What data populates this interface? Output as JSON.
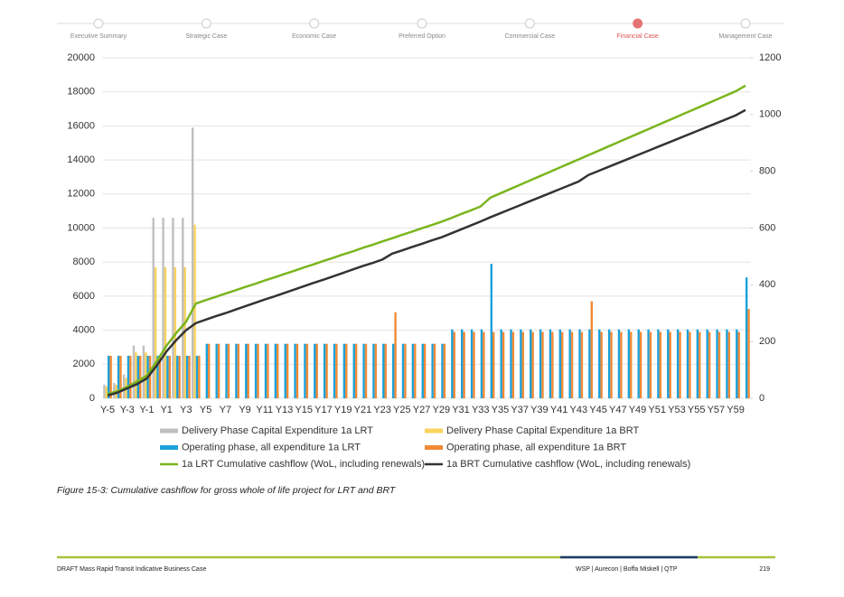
{
  "nav": {
    "steps": [
      "Executive Summary",
      "Strategic Case",
      "Economic Case",
      "Preferred Option",
      "Commercial Case",
      "Financial Case",
      "Management Case"
    ]
  },
  "chart_data": {
    "type": "bar",
    "categories": [
      "Y-5",
      null,
      "Y-3",
      null,
      "Y-1",
      null,
      "Y1",
      null,
      "Y3",
      null,
      "Y5",
      null,
      "Y7",
      null,
      "Y9",
      null,
      "Y11",
      null,
      "Y13",
      null,
      "Y15",
      null,
      "Y17",
      null,
      "Y19",
      null,
      "Y21",
      null,
      "Y23",
      null,
      "Y25",
      null,
      "Y27",
      null,
      "Y29",
      null,
      "Y31",
      null,
      "Y33",
      null,
      "Y35",
      null,
      "Y37",
      null,
      "Y39",
      null,
      "Y41",
      null,
      "Y43",
      null,
      "Y45",
      null,
      "Y47",
      null,
      "Y49",
      null,
      "Y51",
      null,
      "Y53",
      null,
      "Y55",
      null,
      "Y57",
      null,
      "Y59",
      null
    ],
    "ylim": [
      0,
      20000
    ],
    "yticks": [
      0,
      2000,
      4000,
      6000,
      8000,
      10000,
      12000,
      14000,
      16000,
      18000,
      20000
    ],
    "y2lim": [
      0,
      1200
    ],
    "y2ticks": [
      0,
      200,
      400,
      600,
      800,
      1000,
      1200
    ],
    "grid": true,
    "series": [
      {
        "name": "Delivery Phase Capital Expenditure 1a LRT",
        "type": "bar",
        "color": "#bfbfbf",
        "values": [
          800,
          900,
          1400,
          3100,
          3100,
          10600,
          10600,
          10600,
          10600,
          15900,
          null,
          null,
          null,
          null,
          null,
          null,
          null,
          null,
          null,
          null,
          null,
          null,
          null,
          null,
          null,
          null,
          null,
          null,
          null,
          null,
          null,
          null,
          null,
          null,
          null,
          null,
          null,
          null,
          null,
          null,
          null,
          null,
          null,
          null,
          null,
          null,
          null,
          null,
          null,
          null,
          null,
          null,
          null,
          null,
          null,
          null,
          null,
          null,
          null,
          null,
          null,
          null,
          null,
          null,
          null,
          null
        ]
      },
      {
        "name": "Delivery Phase Capital Expenditure 1a BRT",
        "type": "bar",
        "color": "#fad35e",
        "values": [
          700,
          800,
          1200,
          2700,
          2700,
          7700,
          7700,
          7700,
          7700,
          10200,
          null,
          null,
          null,
          null,
          null,
          null,
          null,
          null,
          null,
          null,
          null,
          null,
          null,
          null,
          null,
          null,
          null,
          null,
          null,
          null,
          null,
          null,
          null,
          null,
          null,
          null,
          null,
          null,
          null,
          null,
          null,
          null,
          null,
          null,
          null,
          null,
          null,
          null,
          null,
          null,
          null,
          null,
          null,
          null,
          null,
          null,
          null,
          null,
          null,
          null,
          null,
          null,
          null,
          null,
          null,
          null
        ]
      },
      {
        "name": "Operating phase, all expenditure 1a LRT",
        "type": "bar",
        "color": "#1ba1db",
        "values": [
          2500,
          2500,
          2500,
          2500,
          2500,
          2500,
          2500,
          2500,
          2500,
          2500,
          3200,
          3200,
          3200,
          3200,
          3200,
          3200,
          3200,
          3200,
          3200,
          3200,
          3200,
          3200,
          3200,
          3200,
          3200,
          3200,
          3200,
          3200,
          3200,
          3200,
          3200,
          3200,
          3200,
          3200,
          3200,
          4050,
          4050,
          4050,
          4050,
          7900,
          4050,
          4050,
          4050,
          4050,
          4050,
          4050,
          4050,
          4050,
          4050,
          4050,
          4050,
          4050,
          4050,
          4050,
          4050,
          4050,
          4050,
          4050,
          4050,
          4050,
          4050,
          4050,
          4050,
          4050,
          4050,
          7100
        ]
      },
      {
        "name": "Operating phase, all expenditure 1a BRT",
        "type": "bar",
        "color": "#f08a35",
        "values": [
          2500,
          2500,
          2500,
          2500,
          2500,
          2500,
          2500,
          2500,
          2500,
          2500,
          3200,
          3200,
          3200,
          3200,
          3200,
          3200,
          3200,
          3200,
          3200,
          3200,
          3200,
          3200,
          3200,
          3200,
          3200,
          3200,
          3200,
          3200,
          3200,
          5050,
          3200,
          3200,
          3200,
          3200,
          3200,
          3900,
          3900,
          3900,
          3900,
          3900,
          3900,
          3900,
          3900,
          3900,
          3900,
          3900,
          3900,
          3900,
          3900,
          5700,
          3900,
          3900,
          3900,
          3900,
          3900,
          3900,
          3900,
          3900,
          3900,
          3900,
          3900,
          3900,
          3900,
          3900,
          3900,
          5250
        ]
      },
      {
        "name": "1a LRT Cumulative cashflow (WoL, including renewals)",
        "type": "line",
        "axis": "y2",
        "color": "#7ab51d",
        "values": [
          15,
          25,
          40,
          60,
          80,
          130,
          185,
          230,
          270,
          334,
          346,
          357,
          369,
          380,
          392,
          403,
          415,
          426,
          438,
          449,
          461,
          472,
          484,
          495,
          507,
          518,
          530,
          541,
          553,
          564,
          576,
          587,
          599,
          610,
          622,
          635,
          649,
          662,
          676,
          707,
          722,
          737,
          752,
          767,
          782,
          797,
          812,
          827,
          842,
          857,
          872,
          887,
          902,
          917,
          932,
          947,
          962,
          977,
          992,
          1007,
          1022,
          1037,
          1052,
          1067,
          1082,
          1102
        ]
      },
      {
        "name": "1a BRT Cumulative cashflow (WoL, including renewals)",
        "type": "line",
        "axis": "y2",
        "color": "#333333",
        "values": [
          10,
          20,
          35,
          50,
          70,
          115,
          165,
          205,
          240,
          265,
          277,
          289,
          300,
          312,
          324,
          336,
          348,
          359,
          371,
          383,
          395,
          407,
          418,
          430,
          442,
          454,
          466,
          477,
          489,
          510,
          521,
          533,
          544,
          556,
          567,
          581,
          595,
          609,
          623,
          638,
          652,
          666,
          680,
          694,
          708,
          722,
          736,
          750,
          764,
          787,
          801,
          815,
          829,
          843,
          857,
          871,
          885,
          899,
          913,
          927,
          941,
          955,
          969,
          983,
          997,
          1016
        ]
      }
    ]
  },
  "caption": "Figure 15-3: Cumulative cashflow for gross whole of life project for LRT and BRT",
  "footer": {
    "left": "DRAFT Mass Rapid Transit Indicative Business Case",
    "right": "WSP | Aurecon | Boffa Miskell | QTP",
    "page": "219"
  }
}
